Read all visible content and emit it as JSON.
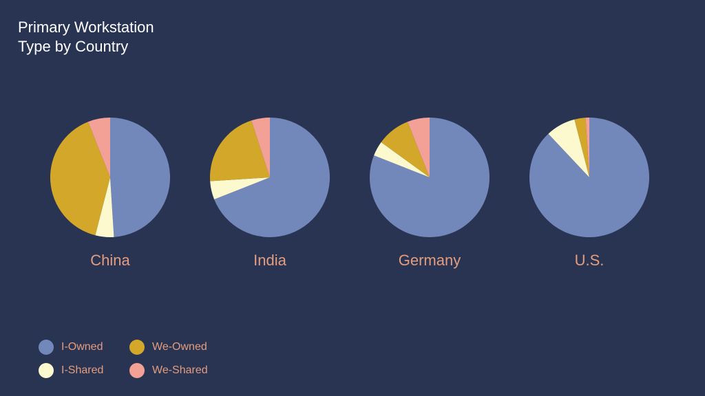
{
  "title_lines": [
    "Primary Workstation",
    "Type by Country"
  ],
  "colors": {
    "background": "#293453",
    "I-Owned": "#7388ba",
    "I-Shared": "#fdf9cf",
    "We-Owned": "#d2a72a",
    "We-Shared": "#f3a096",
    "label": "#e39d7e"
  },
  "legend": [
    {
      "label": "I-Owned",
      "color": "#7388ba"
    },
    {
      "label": "We-Owned",
      "color": "#d2a72a"
    },
    {
      "label": "I-Shared",
      "color": "#fdf9cf"
    },
    {
      "label": "We-Shared",
      "color": "#f3a096"
    }
  ],
  "chart_data": {
    "type": "pie",
    "title": "Primary Workstation Type by Country",
    "categories": [
      "I-Owned",
      "I-Shared",
      "We-Owned",
      "We-Shared"
    ],
    "legend_position": "bottom-left",
    "series": [
      {
        "name": "China",
        "values": [
          49,
          5,
          40,
          6
        ]
      },
      {
        "name": "India",
        "values": [
          69,
          5,
          21,
          5
        ]
      },
      {
        "name": "Germany",
        "values": [
          81,
          4,
          9,
          6
        ]
      },
      {
        "name": "U.S.",
        "values": [
          88,
          8,
          3,
          1
        ]
      }
    ]
  }
}
